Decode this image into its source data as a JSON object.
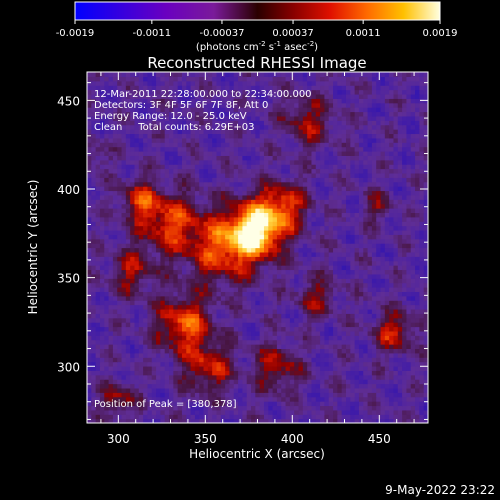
{
  "chart_data": {
    "type": "heatmap",
    "title": "Reconstructed RHESSI Image",
    "xlabel": "Heliocentric X (arcsec)",
    "ylabel": "Heliocentric Y (arcsec)",
    "xlim": [
      282,
      478
    ],
    "ylim": [
      268,
      466
    ],
    "x_ticks": [
      "300",
      "350",
      "400",
      "450"
    ],
    "x_tick_values": [
      300,
      350,
      400,
      450
    ],
    "y_ticks": [
      "300",
      "350",
      "400",
      "450"
    ],
    "y_tick_values": [
      300,
      350,
      400,
      450
    ],
    "colorbar": {
      "ticks": [
        "-0.0019",
        "-0.0011",
        "-0.00037",
        "0.00037",
        "0.0011",
        "0.0019"
      ],
      "tick_values": [
        -0.0019,
        -0.0011,
        -0.00037,
        0.00037,
        0.0011,
        0.0019
      ],
      "range": [
        -0.0019,
        0.0019
      ],
      "unit_label": "(photons cm",
      "unit_exp1": "-2",
      "unit_mid": " s",
      "unit_exp2": "-1",
      "unit_mid2": " asec",
      "unit_exp3": "-2",
      "unit_end": ")"
    },
    "peak": [
      380,
      378
    ],
    "sources": [
      {
        "x": 380,
        "y": 378,
        "amp": 1.0,
        "sigma": 11
      },
      {
        "x": 360,
        "y": 368,
        "amp": 0.6,
        "sigma": 14
      },
      {
        "x": 395,
        "y": 392,
        "amp": 0.55,
        "sigma": 10
      },
      {
        "x": 330,
        "y": 382,
        "amp": 0.55,
        "sigma": 12
      },
      {
        "x": 313,
        "y": 395,
        "amp": 0.5,
        "sigma": 8
      },
      {
        "x": 338,
        "y": 325,
        "amp": 0.65,
        "sigma": 11
      },
      {
        "x": 352,
        "y": 300,
        "amp": 0.5,
        "sigma": 10
      },
      {
        "x": 392,
        "y": 300,
        "amp": 0.45,
        "sigma": 9
      },
      {
        "x": 308,
        "y": 355,
        "amp": 0.4,
        "sigma": 9
      },
      {
        "x": 460,
        "y": 320,
        "amp": 0.5,
        "sigma": 8
      },
      {
        "x": 410,
        "y": 440,
        "amp": 0.4,
        "sigma": 10
      },
      {
        "x": 450,
        "y": 392,
        "amp": 0.3,
        "sigma": 6
      },
      {
        "x": 300,
        "y": 282,
        "amp": 0.4,
        "sigma": 7
      },
      {
        "x": 415,
        "y": 340,
        "amp": 0.35,
        "sigma": 8
      },
      {
        "x": 285,
        "y": 420,
        "amp": 0.25,
        "sigma": 6
      }
    ]
  },
  "info": {
    "line1": "12-Mar-2011 22:28:00.000 to 22:34:00.000",
    "line2": "Detectors: 3F 4F 5F 6F 7F 8F, Att 0",
    "line3": "Energy Range: 12.0 - 25.0 keV",
    "line4": "Clean     Total counts: 6.29E+03",
    "peak_label": "Position of Peak = [380,378]"
  },
  "footer": {
    "date": "9-May-2022 23:22"
  }
}
